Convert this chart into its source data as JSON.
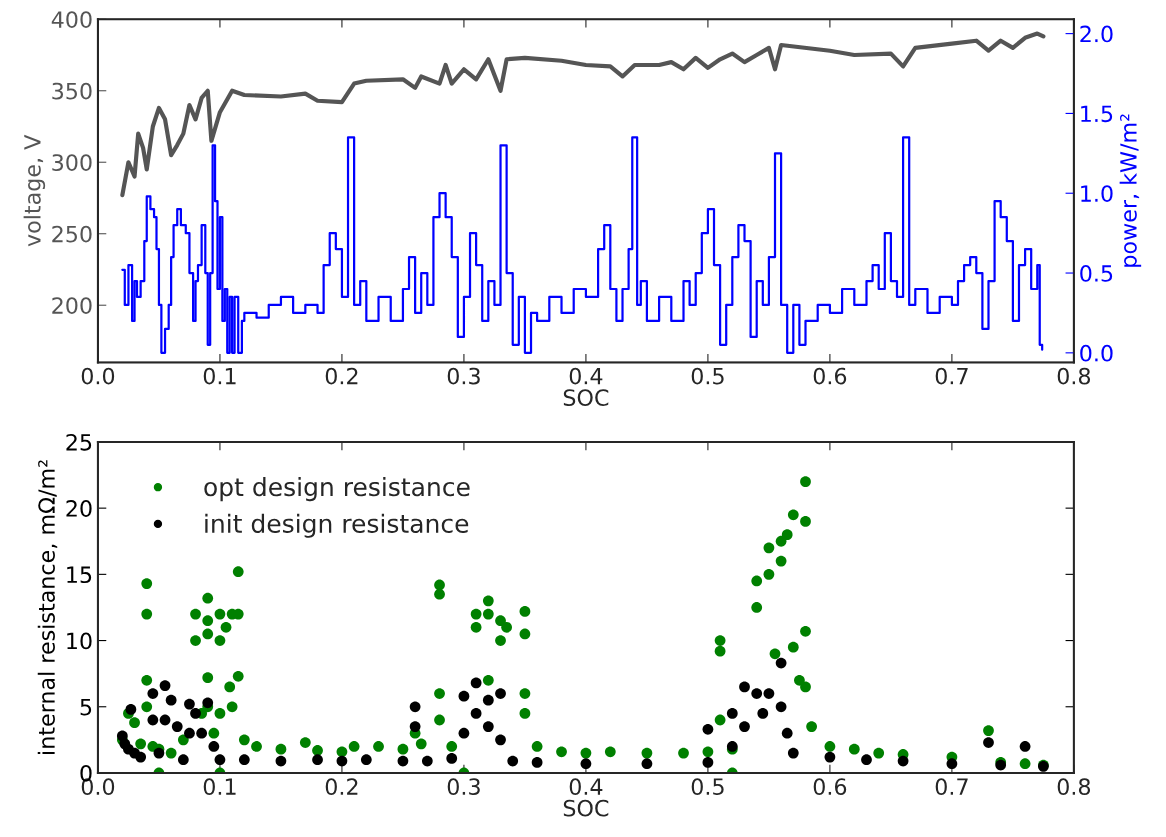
{
  "chart_data": [
    {
      "type": "line",
      "xlabel": "SOC",
      "ylabel": "voltage, V",
      "y2label": "power, kW/m²",
      "grid": false,
      "line_style": "solid",
      "xlim": [
        0,
        0.8
      ],
      "xticks": [
        {
          "value": 0,
          "label": "0.0"
        },
        {
          "value": 0.1,
          "label": "0.1"
        },
        {
          "value": 0.2,
          "label": "0.2"
        },
        {
          "value": 0.3,
          "label": "0.3"
        },
        {
          "value": 0.4,
          "label": "0.4"
        },
        {
          "value": 0.5,
          "label": "0.5"
        },
        {
          "value": 0.6,
          "label": "0.6"
        },
        {
          "value": 0.7,
          "label": "0.7"
        },
        {
          "value": 0.8,
          "label": "0.8"
        }
      ],
      "ylim": [
        160,
        400
      ],
      "yticks": [
        200,
        250,
        300,
        350,
        400
      ],
      "y2lim": [
        -0.06,
        2.09
      ],
      "y2ticks": [
        {
          "value": 0,
          "label": "0.0"
        },
        {
          "value": 0.5,
          "label": "0.5"
        },
        {
          "value": 1.0,
          "label": "1.0"
        },
        {
          "value": 1.5,
          "label": "1.5"
        },
        {
          "value": 2.0,
          "label": "2.0"
        }
      ],
      "series": [
        {
          "color": "#555555",
          "x": [
            0.02,
            0.025,
            0.03,
            0.033,
            0.037,
            0.04,
            0.045,
            0.05,
            0.055,
            0.06,
            0.065,
            0.07,
            0.075,
            0.08,
            0.085,
            0.09,
            0.093,
            0.1,
            0.11,
            0.12,
            0.15,
            0.17,
            0.18,
            0.2,
            0.21,
            0.22,
            0.25,
            0.26,
            0.265,
            0.28,
            0.285,
            0.29,
            0.3,
            0.31,
            0.32,
            0.33,
            0.335,
            0.35,
            0.38,
            0.4,
            0.42,
            0.43,
            0.44,
            0.46,
            0.47,
            0.48,
            0.49,
            0.5,
            0.51,
            0.52,
            0.53,
            0.54,
            0.55,
            0.555,
            0.56,
            0.6,
            0.62,
            0.65,
            0.66,
            0.67,
            0.7,
            0.72,
            0.73,
            0.74,
            0.75,
            0.76,
            0.77,
            0.775
          ],
          "values": [
            277,
            300,
            290,
            320,
            310,
            295,
            325,
            338,
            330,
            305,
            312,
            320,
            340,
            330,
            345,
            350,
            315,
            335,
            350,
            347,
            346,
            348,
            343,
            342,
            355,
            357,
            358,
            352,
            360,
            355,
            368,
            355,
            365,
            358,
            372,
            350,
            372,
            373,
            371,
            368,
            367,
            360,
            368,
            368,
            370,
            365,
            373,
            366,
            372,
            376,
            370,
            375,
            380,
            365,
            382,
            378,
            375,
            376,
            367,
            380,
            383,
            385,
            378,
            385,
            380,
            387,
            390,
            388
          ]
        },
        {
          "type": "step",
          "axis": "y2",
          "color": "#0000ff",
          "x": [
            0.02,
            0.022,
            0.025,
            0.028,
            0.03,
            0.032,
            0.035,
            0.038,
            0.04,
            0.043,
            0.046,
            0.048,
            0.05,
            0.052,
            0.055,
            0.058,
            0.06,
            0.062,
            0.065,
            0.068,
            0.072,
            0.075,
            0.078,
            0.08,
            0.082,
            0.085,
            0.088,
            0.09,
            0.092,
            0.094,
            0.096,
            0.098,
            0.1,
            0.102,
            0.104,
            0.106,
            0.108,
            0.11,
            0.112,
            0.115,
            0.118,
            0.12,
            0.13,
            0.14,
            0.15,
            0.16,
            0.17,
            0.18,
            0.185,
            0.19,
            0.195,
            0.2,
            0.205,
            0.21,
            0.215,
            0.22,
            0.23,
            0.24,
            0.25,
            0.255,
            0.26,
            0.265,
            0.27,
            0.275,
            0.28,
            0.285,
            0.29,
            0.295,
            0.3,
            0.305,
            0.31,
            0.315,
            0.32,
            0.325,
            0.33,
            0.335,
            0.34,
            0.345,
            0.35,
            0.355,
            0.36,
            0.37,
            0.38,
            0.39,
            0.4,
            0.41,
            0.415,
            0.42,
            0.425,
            0.43,
            0.435,
            0.438,
            0.442,
            0.445,
            0.45,
            0.46,
            0.47,
            0.48,
            0.485,
            0.49,
            0.495,
            0.5,
            0.505,
            0.51,
            0.515,
            0.52,
            0.525,
            0.53,
            0.535,
            0.54,
            0.545,
            0.55,
            0.555,
            0.56,
            0.565,
            0.57,
            0.575,
            0.58,
            0.59,
            0.6,
            0.61,
            0.62,
            0.63,
            0.635,
            0.64,
            0.645,
            0.65,
            0.655,
            0.66,
            0.665,
            0.67,
            0.68,
            0.69,
            0.7,
            0.705,
            0.71,
            0.715,
            0.72,
            0.725,
            0.73,
            0.735,
            0.74,
            0.745,
            0.75,
            0.755,
            0.76,
            0.765,
            0.77,
            0.772,
            0.774
          ],
          "values": [
            0.52,
            0.3,
            0.55,
            0.2,
            0.45,
            0.35,
            0.45,
            0.7,
            0.98,
            0.9,
            0.85,
            0.65,
            0.3,
            0.0,
            0.15,
            0.3,
            0.6,
            0.8,
            0.9,
            0.8,
            0.75,
            0.5,
            0.2,
            0.45,
            0.55,
            0.8,
            0.5,
            0.05,
            0.5,
            1.3,
            0.95,
            0.4,
            0.85,
            0.2,
            0.4,
            0.0,
            0.35,
            0.0,
            0.35,
            0.0,
            0.2,
            0.25,
            0.22,
            0.3,
            0.35,
            0.25,
            0.3,
            0.25,
            0.55,
            0.75,
            0.65,
            0.35,
            1.35,
            0.3,
            0.45,
            0.2,
            0.35,
            0.2,
            0.4,
            0.6,
            0.25,
            0.5,
            0.3,
            0.85,
            1.0,
            0.85,
            0.6,
            0.1,
            0.35,
            0.75,
            0.55,
            0.2,
            0.45,
            0.3,
            1.3,
            0.5,
            0.05,
            0.35,
            0.0,
            0.25,
            0.2,
            0.35,
            0.25,
            0.4,
            0.35,
            0.65,
            0.8,
            0.4,
            0.2,
            0.4,
            0.65,
            1.35,
            0.3,
            0.45,
            0.2,
            0.35,
            0.2,
            0.45,
            0.3,
            0.5,
            0.75,
            0.9,
            0.55,
            0.05,
            0.3,
            0.6,
            0.8,
            0.7,
            0.1,
            0.45,
            0.3,
            0.6,
            1.25,
            0.3,
            0.0,
            0.3,
            0.05,
            0.2,
            0.3,
            0.25,
            0.4,
            0.3,
            0.45,
            0.55,
            0.4,
            0.75,
            0.45,
            0.35,
            1.35,
            0.3,
            0.4,
            0.25,
            0.35,
            0.3,
            0.45,
            0.55,
            0.6,
            0.5,
            0.15,
            0.45,
            0.95,
            0.85,
            0.7,
            0.2,
            0.55,
            0.65,
            0.4,
            0.55,
            0.05,
            0.02
          ]
        }
      ]
    },
    {
      "type": "scatter",
      "xlabel": "SOC",
      "ylabel": "internal resistance, mΩ/m²",
      "grid": false,
      "legend": "top left",
      "marker": "circle",
      "xlim": [
        0,
        0.8
      ],
      "xticks": [
        {
          "value": 0,
          "label": "0.0"
        },
        {
          "value": 0.1,
          "label": "0.1"
        },
        {
          "value": 0.2,
          "label": "0.2"
        },
        {
          "value": 0.3,
          "label": "0.3"
        },
        {
          "value": 0.4,
          "label": "0.4"
        },
        {
          "value": 0.5,
          "label": "0.5"
        },
        {
          "value": 0.6,
          "label": "0.6"
        },
        {
          "value": 0.7,
          "label": "0.7"
        },
        {
          "value": 0.8,
          "label": "0.8"
        }
      ],
      "ylim": [
        0,
        25
      ],
      "yticks": [
        0,
        5,
        10,
        15,
        20,
        25
      ],
      "series": [
        {
          "name": "opt design resistance",
          "color": "#008000",
          "x": [
            0.02,
            0.025,
            0.03,
            0.035,
            0.04,
            0.04,
            0.04,
            0.04,
            0.045,
            0.05,
            0.05,
            0.06,
            0.07,
            0.08,
            0.08,
            0.085,
            0.09,
            0.09,
            0.09,
            0.09,
            0.09,
            0.095,
            0.1,
            0.1,
            0.1,
            0.1,
            0.105,
            0.108,
            0.11,
            0.11,
            0.115,
            0.115,
            0.115,
            0.12,
            0.13,
            0.15,
            0.17,
            0.18,
            0.2,
            0.21,
            0.23,
            0.25,
            0.26,
            0.265,
            0.28,
            0.28,
            0.28,
            0.28,
            0.29,
            0.3,
            0.31,
            0.31,
            0.32,
            0.32,
            0.32,
            0.33,
            0.33,
            0.335,
            0.35,
            0.35,
            0.35,
            0.35,
            0.36,
            0.38,
            0.4,
            0.42,
            0.45,
            0.48,
            0.5,
            0.51,
            0.51,
            0.51,
            0.52,
            0.52,
            0.54,
            0.54,
            0.55,
            0.55,
            0.555,
            0.56,
            0.56,
            0.565,
            0.57,
            0.57,
            0.575,
            0.58,
            0.58,
            0.58,
            0.58,
            0.585,
            0.6,
            0.62,
            0.64,
            0.66,
            0.7,
            0.73,
            0.74,
            0.76,
            0.775
          ],
          "values": [
            2.5,
            4.5,
            3.8,
            2.2,
            14.3,
            12,
            7,
            5,
            2,
            1.8,
            0,
            1.5,
            2.5,
            12,
            10,
            4.5,
            13.2,
            11.5,
            10.5,
            7.2,
            5,
            3,
            12,
            10,
            4.5,
            0,
            11,
            6.5,
            12,
            5,
            15.2,
            12,
            7.3,
            2.5,
            2,
            1.8,
            2.3,
            1.7,
            1.6,
            2,
            2,
            1.8,
            3,
            2.2,
            14.2,
            13.5,
            6,
            4,
            2,
            0,
            12,
            11,
            13,
            12,
            7,
            11.5,
            10,
            11,
            12.2,
            10.5,
            6,
            4.5,
            2,
            1.6,
            1.5,
            1.6,
            1.5,
            1.5,
            1.6,
            10,
            9.2,
            4,
            1.8,
            0,
            14.5,
            12.5,
            17,
            15,
            9,
            17.5,
            16,
            18,
            19.5,
            9.5,
            7,
            22,
            19,
            10.7,
            6.5,
            3.5,
            2,
            1.8,
            1.5,
            1.4,
            1.2,
            3.2,
            0.8,
            0.7,
            0.6
          ]
        },
        {
          "name": "init design resistance",
          "color": "#000000",
          "x": [
            0.02,
            0.022,
            0.025,
            0.027,
            0.03,
            0.035,
            0.045,
            0.045,
            0.05,
            0.055,
            0.055,
            0.06,
            0.065,
            0.07,
            0.075,
            0.075,
            0.08,
            0.085,
            0.09,
            0.095,
            0.1,
            0.12,
            0.15,
            0.18,
            0.2,
            0.22,
            0.25,
            0.26,
            0.26,
            0.27,
            0.29,
            0.3,
            0.3,
            0.31,
            0.31,
            0.32,
            0.32,
            0.33,
            0.33,
            0.34,
            0.36,
            0.4,
            0.45,
            0.5,
            0.5,
            0.52,
            0.52,
            0.53,
            0.53,
            0.54,
            0.545,
            0.55,
            0.56,
            0.56,
            0.565,
            0.57,
            0.6,
            0.63,
            0.66,
            0.7,
            0.73,
            0.74,
            0.76,
            0.775
          ],
          "values": [
            2.8,
            2.2,
            1.8,
            4.8,
            1.5,
            1.2,
            6,
            4,
            1.5,
            6.6,
            4,
            5.5,
            3.5,
            1.0,
            5.2,
            3,
            4.5,
            3,
            5.3,
            2,
            1.0,
            1.0,
            0.9,
            1.0,
            0.9,
            1.0,
            0.9,
            5,
            3.5,
            0.9,
            1.1,
            5.8,
            3,
            6.8,
            4.5,
            5.5,
            3.5,
            6,
            2.5,
            0.9,
            0.8,
            0.7,
            0.7,
            3.3,
            0.8,
            4.5,
            2,
            6.5,
            3.5,
            6,
            4.5,
            6,
            8.3,
            5,
            3,
            1.5,
            1.2,
            1.0,
            0.9,
            0.7,
            2.3,
            0.6,
            2.0,
            0.5
          ]
        }
      ]
    }
  ]
}
